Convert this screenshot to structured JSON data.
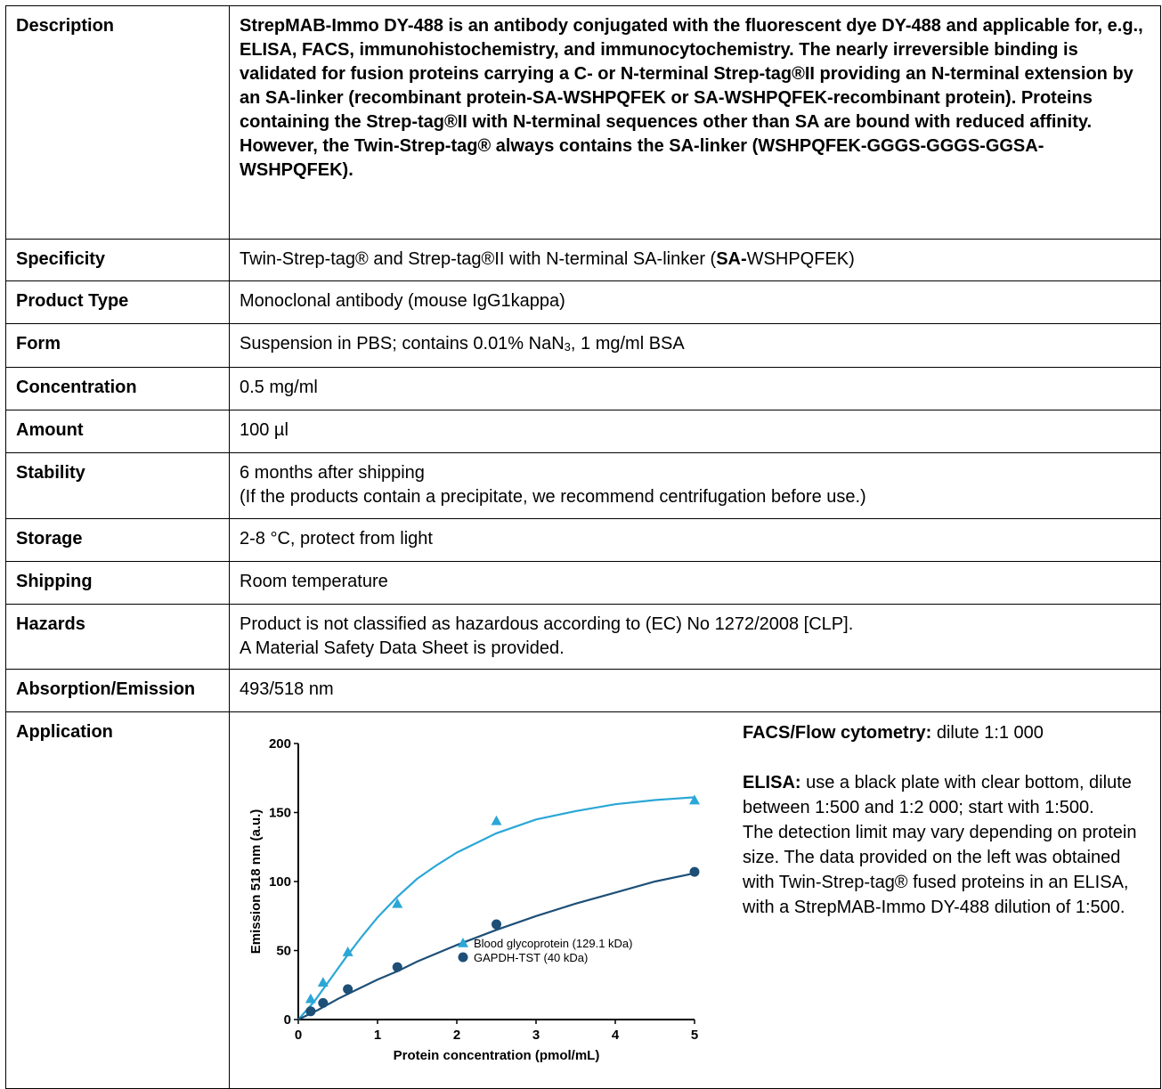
{
  "rows": [
    {
      "label": "Description",
      "value": "StrepMAB-Immo DY-488 is an antibody conjugated with the fluorescent dye DY-488 and applicable for, e.g., ELISA, FACS, immunohistochemistry, and immunocytochemistry. The nearly irreversible binding is validated for fusion proteins carrying a C- or N-terminal Strep-tag®II providing an N-terminal extension by an SA-linker (recombinant protein-SA-WSHPQFEK or SA-WSHPQFEK-recombinant protein). Proteins containing the Strep-tag®II with N-terminal sequences other than SA are bound with reduced affinity. However, the Twin-Strep-tag® always contains the SA-linker (WSHPQFEK-GGGS-GGGS-GGSA-WSHPQFEK)."
    },
    {
      "label": "Specificity",
      "value_pre": "Twin-Strep-tag® and Strep-tag®II with N-terminal SA-linker (",
      "value_bold": "SA-",
      "value_post": "WSHPQFEK)"
    },
    {
      "label": "Product Type",
      "value": "Monoclonal antibody (mouse IgG1kappa)"
    },
    {
      "label": "Form",
      "value_pre": "Suspension in PBS; contains 0.01% NaN",
      "value_sub": "3",
      "value_post": ", 1 mg/ml BSA"
    },
    {
      "label": "Concentration",
      "value": "0.5 mg/ml"
    },
    {
      "label": "Amount",
      "value": "100 µl"
    },
    {
      "label": "Stability",
      "line1": "6 months after shipping",
      "line2": "(If the products contain a precipitate, we recommend centrifugation before use.)"
    },
    {
      "label": "Storage",
      "value": "2-8 °C, protect from light"
    },
    {
      "label": "Shipping",
      "value": "Room temperature"
    },
    {
      "label": "Hazards",
      "line1": "Product is not classified as hazardous according to (EC) No 1272/2008 [CLP].",
      "line2": "A Material Safety Data Sheet is provided."
    },
    {
      "label": "Absorption/Emission",
      "value": "493/518 nm"
    },
    {
      "label": "Application"
    }
  ],
  "application_text": {
    "facs_label": "FACS/Flow cytometry:",
    "facs_value": " dilute 1:1 000",
    "elisa_label": "ELISA:",
    "elisa_value": " use a black plate with clear bottom, dilute between 1:500 and 1:2 000; start with 1:500.",
    "detection_note": "The detection limit may vary depending on protein size. The data provided on the left was obtained with Twin-Strep-tag® fused proteins in an ELISA, with a StrepMAB-Immo DY-488 dilution of 1:500."
  },
  "chart_data": {
    "type": "scatter",
    "xlabel": "Protein concentration (pmol/mL)",
    "ylabel": "Emission 518 nm (a.u.)",
    "xlim": [
      0,
      5
    ],
    "ylim": [
      0,
      200
    ],
    "x_ticks": [
      "0",
      "1",
      "2",
      "3",
      "4",
      "5"
    ],
    "y_ticks": [
      "0",
      "50",
      "100",
      "150",
      "200"
    ],
    "legend_position": "bottom-right",
    "series": [
      {
        "name": "Blood glycoprotein (129.1 kDa)",
        "marker": "triangle",
        "color": "#2aa7d6",
        "x": [
          0.156,
          0.3125,
          0.625,
          1.25,
          2.5,
          5
        ],
        "y": [
          15,
          27,
          49,
          84,
          144,
          159
        ],
        "fit": [
          [
            0,
            0
          ],
          [
            0.2,
            13
          ],
          [
            0.4,
            29
          ],
          [
            0.6,
            45
          ],
          [
            0.8,
            60
          ],
          [
            1.0,
            74
          ],
          [
            1.25,
            89
          ],
          [
            1.5,
            102
          ],
          [
            1.75,
            112
          ],
          [
            2.0,
            121
          ],
          [
            2.5,
            135
          ],
          [
            3.0,
            145
          ],
          [
            3.5,
            151
          ],
          [
            4.0,
            156
          ],
          [
            4.5,
            159
          ],
          [
            5.0,
            161
          ]
        ]
      },
      {
        "name": "GAPDH-TST (40 kDa)",
        "marker": "circle",
        "color": "#1d4f77",
        "x": [
          0.156,
          0.3125,
          0.625,
          1.25,
          2.5,
          5
        ],
        "y": [
          6,
          12,
          22,
          38,
          69,
          107
        ],
        "fit": [
          [
            0,
            0
          ],
          [
            0.25,
            7
          ],
          [
            0.5,
            15
          ],
          [
            0.75,
            22
          ],
          [
            1.0,
            29
          ],
          [
            1.25,
            35
          ],
          [
            1.5,
            42
          ],
          [
            2.0,
            54
          ],
          [
            2.5,
            65
          ],
          [
            3.0,
            75
          ],
          [
            3.5,
            84
          ],
          [
            4.0,
            92
          ],
          [
            4.5,
            100
          ],
          [
            5.0,
            106
          ]
        ]
      }
    ]
  }
}
